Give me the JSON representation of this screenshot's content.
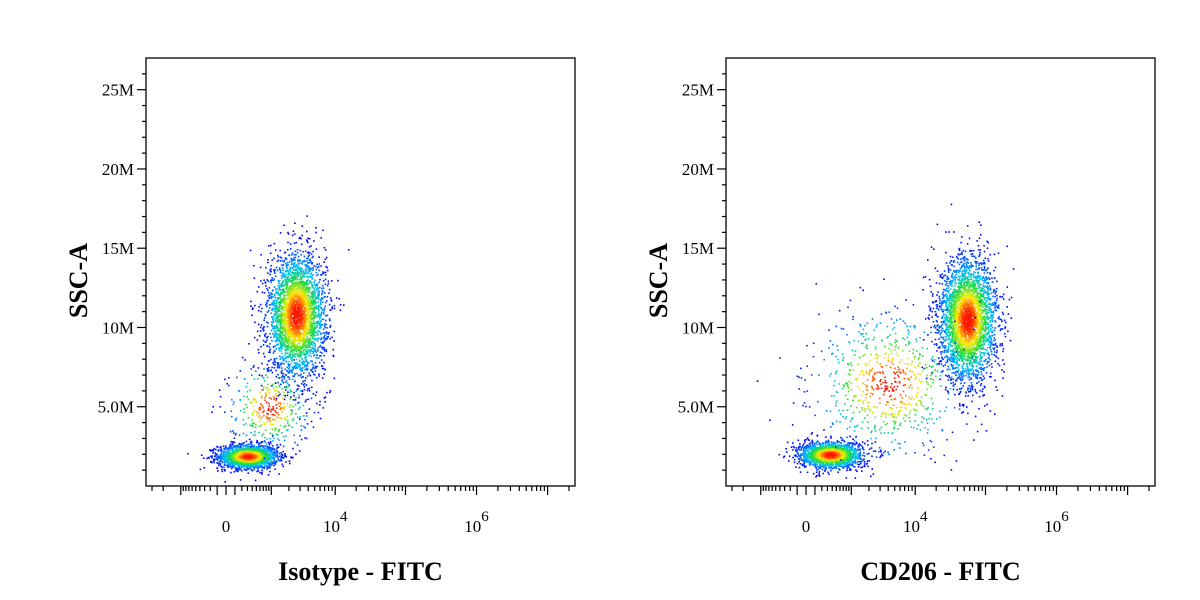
{
  "chart_data": [
    {
      "type": "scatter",
      "title": "",
      "xlabel": "Isotype - FITC",
      "ylabel": "SSC-A",
      "x_scale": "biexponential",
      "xlim": [
        -3000,
        20000000
      ],
      "ylim": [
        0,
        27000000
      ],
      "x_tick_labels": [
        {
          "value": 0,
          "base": "0",
          "exp": ""
        },
        {
          "value": 10000,
          "base": "10",
          "exp": "4"
        },
        {
          "value": 1000000,
          "base": "10",
          "exp": "6"
        }
      ],
      "y_tick_labels": [
        {
          "value": 5000000,
          "label": "5.0M"
        },
        {
          "value": 10000000,
          "label": "10M"
        },
        {
          "value": 15000000,
          "label": "15M"
        },
        {
          "value": 20000000,
          "label": "20M"
        },
        {
          "value": 25000000,
          "label": "25M"
        }
      ],
      "coloring": "density (blue-cyan-green-yellow-red)",
      "populations": [
        {
          "name": "",
          "x_center": 300,
          "y_center": 1900000,
          "x_spread_decades": 0.35,
          "y_spread": 380000,
          "points": 1800
        },
        {
          "name": "",
          "x_center": 2600,
          "y_center": 10800000,
          "x_spread_decades": 0.22,
          "y_spread": 1900000,
          "points": 3200
        },
        {
          "name": "",
          "x_center": 900,
          "y_center": 5000000,
          "x_spread_decades": 0.35,
          "y_spread": 1300000,
          "points": 350
        }
      ]
    },
    {
      "type": "scatter",
      "title": "",
      "xlabel": "CD206 - FITC",
      "ylabel": "SSC-A",
      "x_scale": "biexponential",
      "xlim": [
        -3000,
        20000000
      ],
      "ylim": [
        0,
        27000000
      ],
      "x_tick_labels": [
        {
          "value": 0,
          "base": "0",
          "exp": ""
        },
        {
          "value": 10000,
          "base": "10",
          "exp": "4"
        },
        {
          "value": 1000000,
          "base": "10",
          "exp": "6"
        }
      ],
      "y_tick_labels": [
        {
          "value": 5000000,
          "label": "5.0M"
        },
        {
          "value": 10000000,
          "label": "10M"
        },
        {
          "value": 15000000,
          "label": "15M"
        },
        {
          "value": 20000000,
          "label": "20M"
        },
        {
          "value": 25000000,
          "label": "25M"
        }
      ],
      "coloring": "density (blue-cyan-green-yellow-red)",
      "populations": [
        {
          "name": "",
          "x_center": 350,
          "y_center": 2000000,
          "x_spread_decades": 0.35,
          "y_spread": 420000,
          "points": 1700
        },
        {
          "name": "",
          "x_center": 55000,
          "y_center": 10500000,
          "x_spread_decades": 0.2,
          "y_spread": 1900000,
          "points": 3200
        },
        {
          "name": "",
          "x_center": 4000,
          "y_center": 6500000,
          "x_spread_decades": 0.55,
          "y_spread": 2200000,
          "points": 700
        }
      ]
    }
  ]
}
